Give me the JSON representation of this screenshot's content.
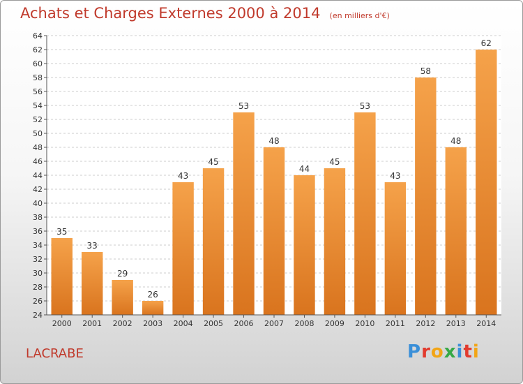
{
  "title": "Achats et Charges Externes 2000 à 2014",
  "subtitle": "(en milliers d'€)",
  "place": "LACRABE",
  "logo": {
    "text": "Proxiti",
    "letters": [
      {
        "ch": "P",
        "color": "#3a8fd8"
      },
      {
        "ch": "r",
        "color": "#e23b2e"
      },
      {
        "ch": "o",
        "color": "#f2a516"
      },
      {
        "ch": "x",
        "color": "#36a946"
      },
      {
        "ch": "i",
        "color": "#3a8fd8"
      },
      {
        "ch": "t",
        "color": "#e23b2e"
      },
      {
        "ch": "i",
        "color": "#f2a516"
      }
    ]
  },
  "colors": {
    "title": "#c0392b",
    "bar_light": "#f5a24a",
    "bar_dark": "#d9741e",
    "grid": "#cccccc",
    "text": "#333333"
  },
  "chart_data": {
    "type": "bar",
    "title": "Achats et Charges Externes 2000 à 2014",
    "subtitle": "(en milliers d'€)",
    "categories": [
      "2000",
      "2001",
      "2002",
      "2003",
      "2004",
      "2005",
      "2006",
      "2007",
      "2008",
      "2009",
      "2010",
      "2011",
      "2012",
      "2013",
      "2014"
    ],
    "values": [
      35,
      33,
      29,
      26,
      43,
      45,
      53,
      48,
      44,
      45,
      53,
      43,
      58,
      48,
      62
    ],
    "ylim": [
      24,
      64
    ],
    "yticks": [
      24,
      26,
      28,
      30,
      32,
      34,
      36,
      38,
      40,
      42,
      44,
      46,
      48,
      50,
      52,
      54,
      56,
      58,
      60,
      62,
      64
    ],
    "grid": true,
    "xlabel": "",
    "ylabel": ""
  }
}
